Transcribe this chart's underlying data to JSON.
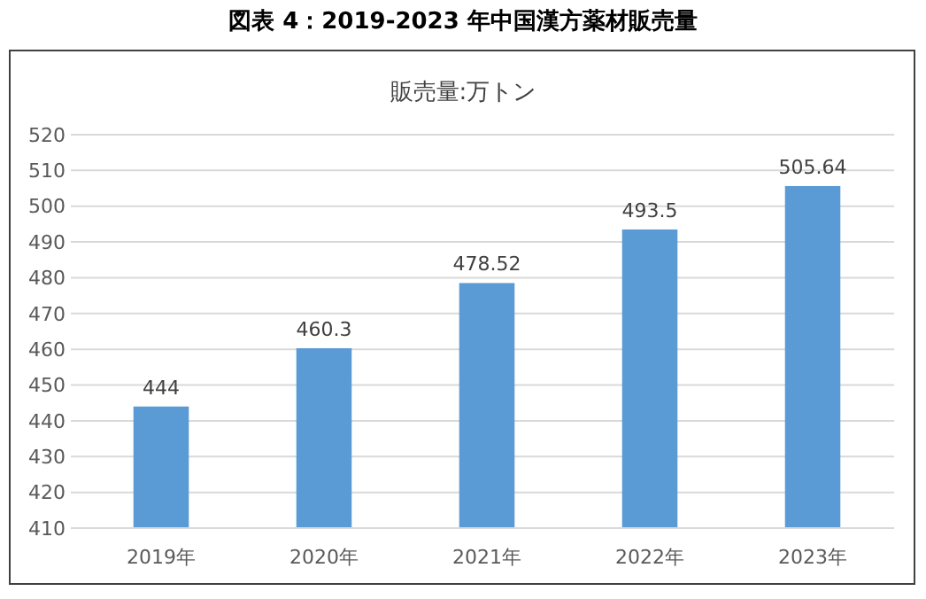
{
  "chart_data": {
    "type": "bar",
    "title": "図表 4：2019-2023 年中国漢方薬材販売量",
    "subtitle": "販売量:万トン",
    "categories": [
      "2019年",
      "2020年",
      "2021年",
      "2022年",
      "2023年"
    ],
    "values": [
      444,
      460.3,
      478.52,
      493.5,
      505.64
    ],
    "color": "#5b9bd5",
    "ylim": [
      410,
      520
    ],
    "yticks": [
      410,
      420,
      430,
      440,
      450,
      460,
      470,
      480,
      490,
      500,
      510,
      520
    ],
    "grid": "y",
    "data_labels": true
  }
}
